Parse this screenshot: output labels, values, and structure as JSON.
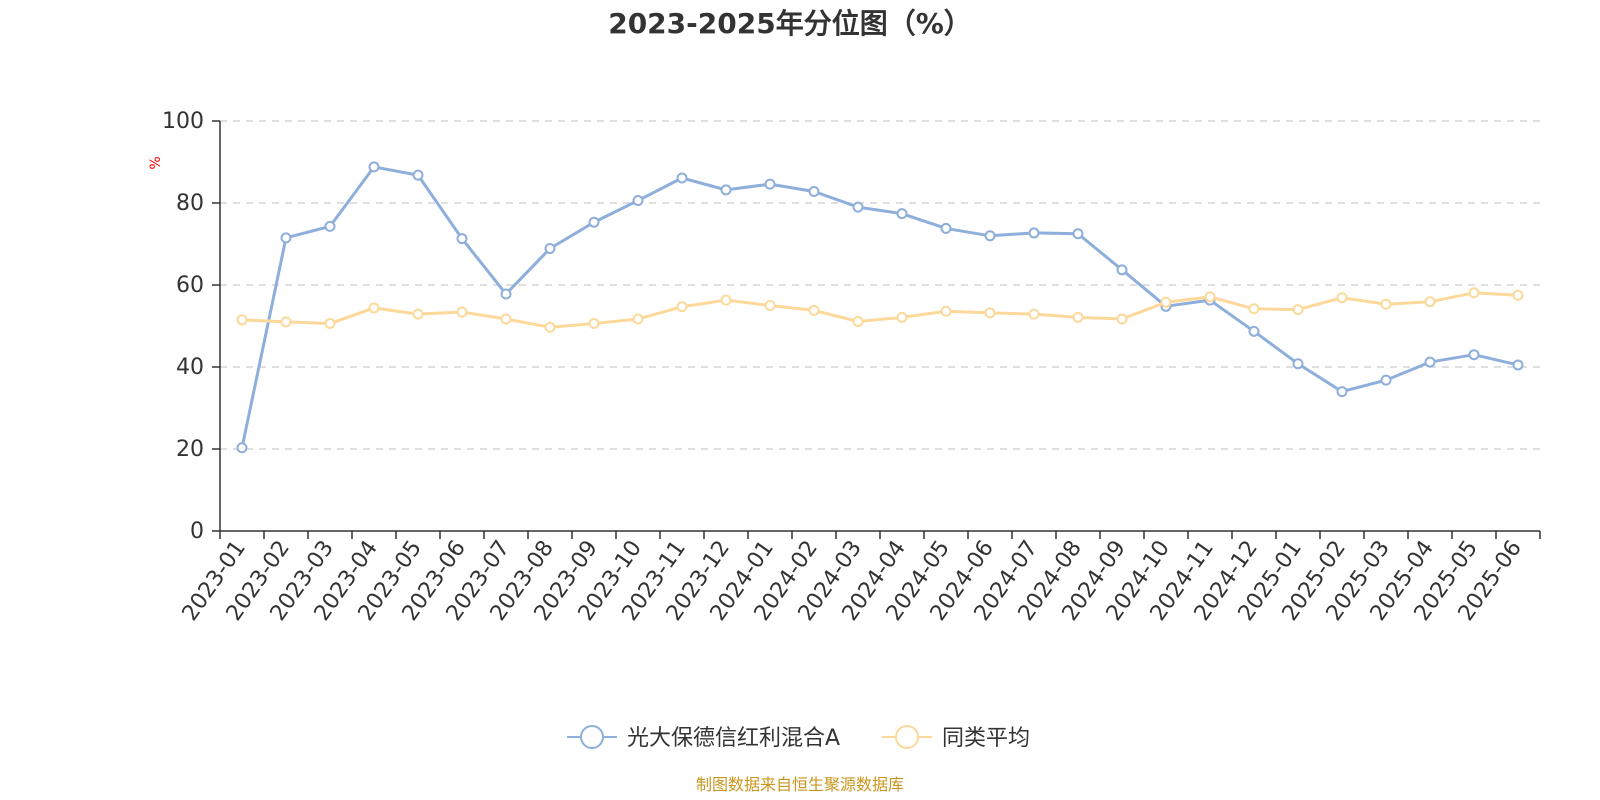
{
  "chart_data": {
    "type": "line",
    "title": "2023-2025年分位图（%）",
    "ylabel": "%",
    "ylim": [
      0,
      100
    ],
    "yticks": [
      "0",
      "20",
      "40",
      "60",
      "80",
      "100"
    ],
    "grid": true,
    "legend_position": "bottom",
    "categories": [
      "2023-01",
      "2023-02",
      "2023-03",
      "2023-04",
      "2023-05",
      "2023-06",
      "2023-07",
      "2023-08",
      "2023-09",
      "2023-10",
      "2023-11",
      "2023-12",
      "2024-01",
      "2024-02",
      "2024-03",
      "2024-04",
      "2024-05",
      "2024-06",
      "2024-07",
      "2024-08",
      "2024-09",
      "2024-10",
      "2024-11",
      "2024-12",
      "2025-01",
      "2025-02",
      "2025-03",
      "2025-04",
      "2025-05",
      "2025-06"
    ],
    "series": [
      {
        "name": "光大保德信红利混合A",
        "color": "#8eaedc",
        "values": [
          20.3,
          71.5,
          74.3,
          88.8,
          86.8,
          71.3,
          57.8,
          68.9,
          75.3,
          80.6,
          86.1,
          83.2,
          84.6,
          82.8,
          79.0,
          77.4,
          73.8,
          72.0,
          72.7,
          72.5,
          63.7,
          54.8,
          56.3,
          48.7,
          40.8,
          34.0,
          36.8,
          41.2,
          43.0,
          40.5
        ]
      },
      {
        "name": "同类平均",
        "color": "#fcd99a",
        "values": [
          51.5,
          51.0,
          50.6,
          54.4,
          52.9,
          53.4,
          51.7,
          49.7,
          50.6,
          51.7,
          54.7,
          56.3,
          55.0,
          53.8,
          51.1,
          52.1,
          53.6,
          53.2,
          52.9,
          52.1,
          51.7,
          55.8,
          57.1,
          54.2,
          54.0,
          56.9,
          55.3,
          55.9,
          58.1,
          57.5
        ]
      }
    ]
  },
  "footer": {
    "source": "制图数据来自恒生聚源数据库"
  }
}
